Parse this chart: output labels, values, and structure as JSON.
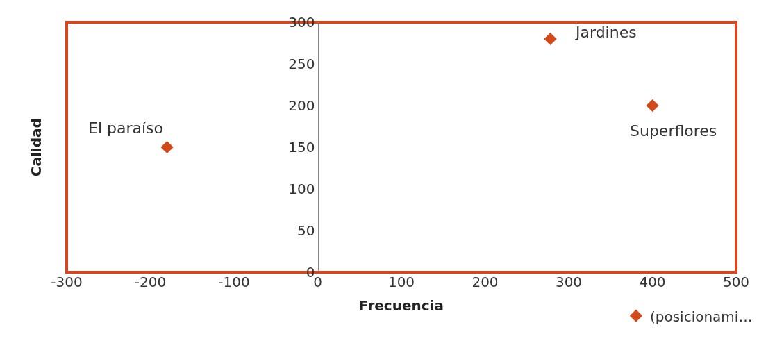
{
  "chart_data": {
    "type": "scatter",
    "xlabel": "Frecuencia",
    "ylabel": "Calidad",
    "x": [
      -180,
      278,
      400
    ],
    "series": [
      {
        "name": "(posicionami…",
        "color": "#d24a1a",
        "values": [
          150,
          280,
          200
        ]
      }
    ],
    "marker": "diamond",
    "xlim": [
      -300,
      500
    ],
    "xticks": [
      -300,
      -200,
      -100,
      0,
      100,
      200,
      300,
      400,
      500
    ],
    "ylim": [
      0,
      300
    ],
    "yticks": [
      0,
      50,
      100,
      150,
      200,
      250,
      300
    ],
    "annotations": [
      {
        "text": "El paraíso",
        "x": -180,
        "y": 150
      },
      {
        "text": "Jardines",
        "x": 278,
        "y": 280
      },
      {
        "text": "Superflores",
        "x": 400,
        "y": 200
      }
    ],
    "grid": false,
    "legend": "bottom right"
  }
}
